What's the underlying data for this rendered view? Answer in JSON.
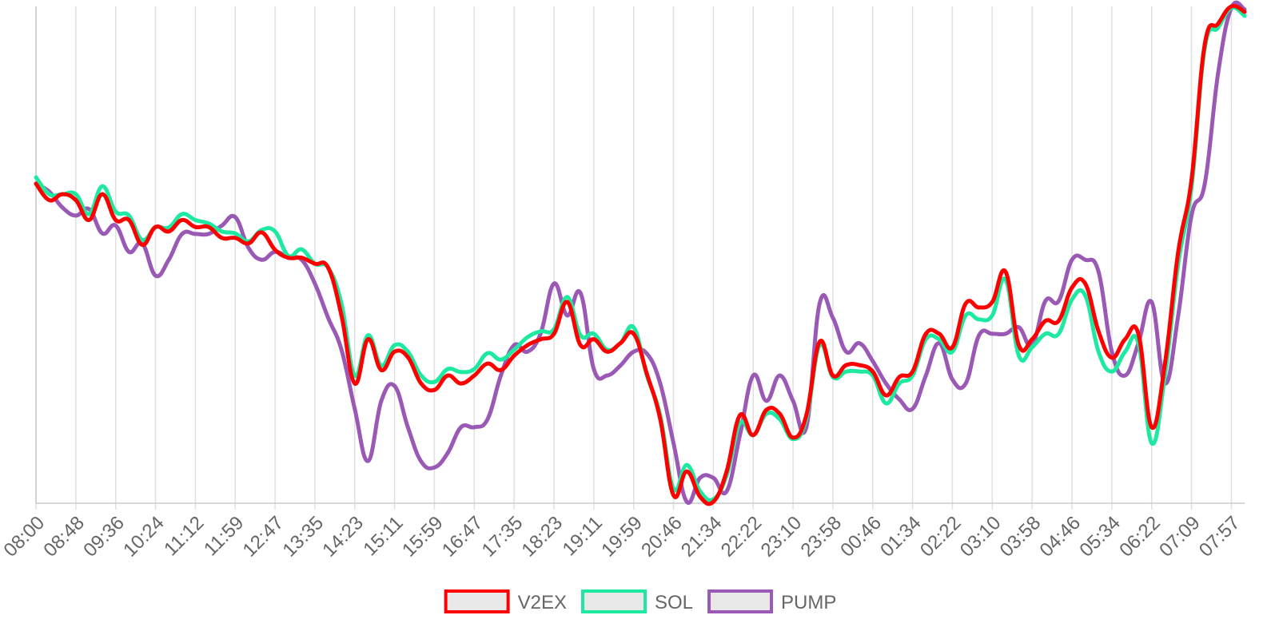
{
  "chart_data": {
    "type": "line",
    "categories": [
      "08:00",
      null,
      null,
      "08:48",
      null,
      null,
      "09:36",
      null,
      null,
      "10:24",
      null,
      null,
      "11:12",
      null,
      null,
      "11:59",
      null,
      null,
      "12:47",
      null,
      null,
      "13:35",
      null,
      null,
      "14:23",
      null,
      null,
      "15:11",
      null,
      null,
      "15:59",
      null,
      null,
      "16:47",
      null,
      null,
      "17:35",
      null,
      null,
      "18:23",
      null,
      null,
      "19:11",
      null,
      null,
      "19:59",
      null,
      null,
      "20:46",
      null,
      null,
      "21:34",
      null,
      null,
      "22:22",
      null,
      null,
      "23:10",
      null,
      null,
      "23:58",
      null,
      null,
      "00:46",
      null,
      null,
      "01:34",
      null,
      null,
      "02:22",
      null,
      null,
      "03:10",
      null,
      null,
      "03:58",
      null,
      null,
      "04:46",
      null,
      null,
      "05:34",
      null,
      null,
      "06:22",
      null,
      null,
      "07:09",
      null,
      null,
      "07:57",
      null
    ],
    "series": [
      {
        "name": "V2EX",
        "color": "#ff0000",
        "values": [
          64.3,
          61,
          62.2,
          61,
          57,
          62.2,
          57,
          57,
          52,
          55.6,
          54.7,
          57,
          55.6,
          55.6,
          53.4,
          53.4,
          52.3,
          54.5,
          51,
          49.4,
          49.4,
          48.2,
          47.4,
          37.8,
          24.1,
          33,
          26.8,
          30.5,
          29.4,
          24.1,
          22.8,
          25.7,
          24.1,
          25.7,
          28.1,
          26.8,
          29.7,
          31.8,
          33,
          34.1,
          40.5,
          31.8,
          33,
          30.5,
          32.2,
          34.1,
          26,
          16.9,
          1.6,
          6.4,
          1.3,
          0.3,
          6.4,
          17.7,
          13.7,
          18.8,
          18,
          13.2,
          17.7,
          32.5,
          25.7,
          27.8,
          27.8,
          26.5,
          21.7,
          25.4,
          26.5,
          34.1,
          34.1,
          31.4,
          40.2,
          39.4,
          40.5,
          46.6,
          31.8,
          33,
          36.7,
          36.7,
          43.4,
          44.2,
          34.6,
          29.3,
          33,
          34.1,
          15.3,
          28.1,
          50.6,
          65.1,
          92.4,
          96.5,
          100,
          98.9
        ]
      },
      {
        "name": "SOL",
        "color": "#1de9a0",
        "values": [
          65.6,
          62.2,
          62.2,
          62.2,
          58.2,
          63.8,
          58.7,
          57.9,
          53,
          55.5,
          55.5,
          58.2,
          57,
          56.3,
          54.7,
          54.3,
          52.7,
          55,
          54.7,
          49.8,
          51.1,
          48.2,
          47.4,
          40.2,
          25.7,
          33.8,
          27.7,
          31.8,
          30.5,
          25.7,
          24.4,
          27,
          26.4,
          27,
          30.2,
          28.9,
          30.9,
          33.4,
          34.6,
          35,
          41.5,
          33.8,
          34.1,
          30.9,
          32.2,
          35.4,
          25.7,
          17.7,
          2.9,
          7.7,
          2.4,
          0.8,
          5.6,
          16.1,
          13.7,
          18,
          16.9,
          12.9,
          16.9,
          31.8,
          25.4,
          26.5,
          26.5,
          25.7,
          20.1,
          24.1,
          25.7,
          33,
          33,
          30.5,
          37.8,
          37,
          37.8,
          45,
          29.7,
          31.4,
          34.1,
          34.1,
          41,
          41.8,
          30.5,
          26.5,
          30.5,
          32.2,
          12.1,
          25.7,
          48.2,
          63.5,
          91.6,
          95.7,
          99.7,
          98.1
        ]
      },
      {
        "name": "PUMP",
        "color": "#9b59b6",
        "values": [
          64.3,
          62.7,
          59.5,
          57.9,
          59.2,
          54.3,
          55.9,
          50.6,
          52.3,
          45.8,
          49,
          54.2,
          54.2,
          54.2,
          55.9,
          57.6,
          51.4,
          49,
          50.6,
          49.5,
          49,
          44.2,
          37.3,
          30.9,
          19,
          8.5,
          20.6,
          23.6,
          15.3,
          8.4,
          7.2,
          10.1,
          15.3,
          15.3,
          16.9,
          25.7,
          31.8,
          30.5,
          34.2,
          44.2,
          37.8,
          42.3,
          27,
          25.7,
          27.7,
          30.5,
          30.1,
          24.1,
          12.1,
          0.3,
          5.1,
          5.1,
          2.4,
          13.7,
          25.7,
          20.6,
          25.7,
          20.6,
          15.3,
          40.2,
          37.3,
          30.5,
          32.2,
          28.6,
          24.1,
          20.9,
          19,
          25.7,
          32.2,
          24.9,
          24.1,
          33.8,
          34.1,
          34.1,
          35.4,
          31.8,
          40.7,
          40.7,
          49,
          49,
          46.6,
          30.5,
          25.7,
          32.2,
          40.5,
          24.1,
          37.8,
          57.9,
          64.3,
          86.5,
          99.7,
          99.4
        ]
      }
    ],
    "ylim": [
      0,
      100
    ],
    "grid": true,
    "legend": "bottom"
  }
}
